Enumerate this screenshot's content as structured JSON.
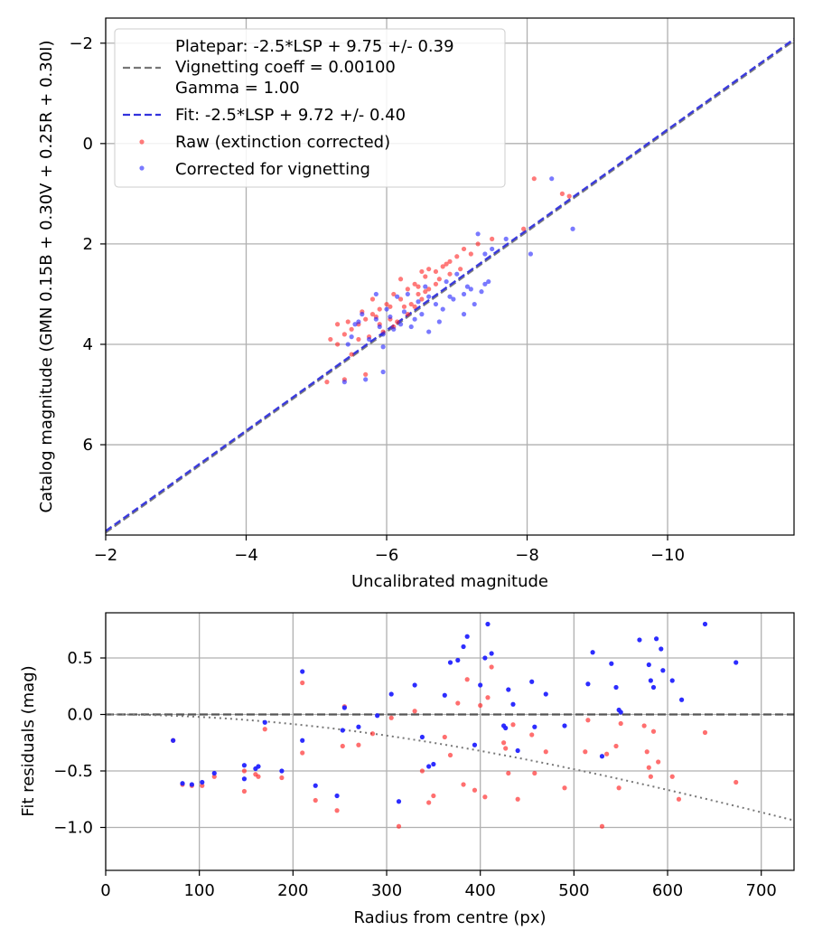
{
  "chart_data": [
    {
      "type": "scatter",
      "xlabel": "Uncalibrated magnitude",
      "ylabel": "Catalog magnitude (GMN 0.15B + 0.30V + 0.25R + 0.30I)",
      "xlim": [
        -2,
        -11.8
      ],
      "ylim": [
        7.8,
        -2.5
      ],
      "x_inverted": true,
      "y_inverted": true,
      "grid": true,
      "xticks": [
        -2,
        -4,
        -6,
        -8,
        -10
      ],
      "xtick_labels": [
        "−2",
        "−4",
        "−6",
        "−8",
        "−10"
      ],
      "yticks": [
        -2,
        0,
        2,
        4,
        6
      ],
      "ytick_labels": [
        "−2",
        "0",
        "2",
        "4",
        "6"
      ],
      "legend_position": "top-left",
      "legend": [
        {
          "label": "Platepar: -2.5*LSP + 9.75 +/- 0.39",
          "style": "none"
        },
        {
          "label": "Vignetting coeff = 0.00100",
          "style": "dashed",
          "color": "#777777"
        },
        {
          "label": "Gamma = 1.00",
          "style": "none"
        },
        {
          "label": "Fit: -2.5*LSP + 9.72 +/- 0.40",
          "style": "dashed",
          "color": "#3333dd"
        },
        {
          "label": "Raw (extinction corrected)",
          "style": "marker",
          "color": "#ff2222"
        },
        {
          "label": "Corrected for vignetting",
          "style": "marker",
          "color": "#2222ff"
        }
      ],
      "lines": [
        {
          "name": "Platepar",
          "slope": 1.0,
          "offset": 9.75,
          "color": "#777777",
          "style": "dashed"
        },
        {
          "name": "Fit",
          "slope": 1.0,
          "offset": 9.72,
          "color": "#3333dd",
          "style": "dashed"
        }
      ],
      "series": [
        {
          "name": "Raw (extinction corrected)",
          "color": "#ff2222",
          "points": [
            [
              -8.1,
              0.7
            ],
            [
              -8.5,
              1.0
            ],
            [
              -8.6,
              1.05
            ],
            [
              -7.95,
              1.7
            ],
            [
              -7.5,
              1.9
            ],
            [
              -7.2,
              2.2
            ],
            [
              -7.0,
              2.25
            ],
            [
              -7.1,
              2.1
            ],
            [
              -6.85,
              2.4
            ],
            [
              -6.9,
              2.6
            ],
            [
              -6.7,
              2.8
            ],
            [
              -6.6,
              2.5
            ],
            [
              -6.5,
              2.55
            ],
            [
              -6.4,
              2.8
            ],
            [
              -6.3,
              2.9
            ],
            [
              -6.2,
              2.7
            ],
            [
              -6.1,
              3.0
            ],
            [
              -6.2,
              3.1
            ],
            [
              -6.0,
              3.2
            ],
            [
              -5.9,
              3.3
            ],
            [
              -5.8,
              3.4
            ],
            [
              -5.7,
              3.5
            ],
            [
              -5.6,
              3.6
            ],
            [
              -5.5,
              3.7
            ],
            [
              -5.4,
              3.8
            ],
            [
              -5.3,
              3.6
            ],
            [
              -5.2,
              3.9
            ],
            [
              -5.3,
              4.0
            ],
            [
              -6.05,
              3.5
            ],
            [
              -6.3,
              3.4
            ],
            [
              -6.5,
              3.1
            ],
            [
              -6.45,
              3.0
            ],
            [
              -5.9,
              3.6
            ],
            [
              -5.75,
              3.85
            ],
            [
              -5.5,
              4.2
            ],
            [
              -5.4,
              4.7
            ],
            [
              -5.7,
              4.6
            ],
            [
              -5.15,
              4.75
            ],
            [
              -6.35,
              3.2
            ],
            [
              -6.6,
              2.9
            ],
            [
              -6.75,
              2.7
            ],
            [
              -6.55,
              2.65
            ],
            [
              -5.95,
              3.75
            ],
            [
              -6.15,
              3.55
            ],
            [
              -5.85,
              3.45
            ],
            [
              -5.65,
              3.35
            ],
            [
              -6.25,
              3.25
            ],
            [
              -5.45,
              3.55
            ],
            [
              -6.05,
              3.25
            ],
            [
              -6.7,
              2.55
            ],
            [
              -7.3,
              2.0
            ],
            [
              -7.05,
              2.5
            ],
            [
              -6.45,
              2.85
            ],
            [
              -6.8,
              2.45
            ],
            [
              -6.4,
              3.25
            ],
            [
              -5.6,
              3.9
            ],
            [
              -6.1,
              3.65
            ],
            [
              -5.8,
              3.1
            ],
            [
              -6.55,
              2.95
            ],
            [
              -6.9,
              2.35
            ]
          ]
        },
        {
          "name": "Corrected for vignetting",
          "color": "#2222ff",
          "points": [
            [
              -8.35,
              0.7
            ],
            [
              -8.65,
              1.7
            ],
            [
              -8.05,
              2.2
            ],
            [
              -7.7,
              1.9
            ],
            [
              -7.3,
              1.8
            ],
            [
              -7.5,
              2.1
            ],
            [
              -7.4,
              2.2
            ],
            [
              -7.45,
              2.75
            ],
            [
              -7.4,
              2.8
            ],
            [
              -7.2,
              2.9
            ],
            [
              -7.1,
              3.0
            ],
            [
              -7.0,
              2.6
            ],
            [
              -6.95,
              3.1
            ],
            [
              -6.8,
              3.3
            ],
            [
              -6.7,
              3.2
            ],
            [
              -6.6,
              3.05
            ],
            [
              -6.5,
              3.4
            ],
            [
              -6.4,
              3.5
            ],
            [
              -6.3,
              3.0
            ],
            [
              -6.2,
              3.6
            ],
            [
              -6.1,
              3.7
            ],
            [
              -6.0,
              3.3
            ],
            [
              -5.95,
              3.8
            ],
            [
              -5.85,
              3.5
            ],
            [
              -5.75,
              3.9
            ],
            [
              -5.65,
              3.4
            ],
            [
              -5.55,
              3.6
            ],
            [
              -5.45,
              4.0
            ],
            [
              -5.4,
              4.75
            ],
            [
              -5.7,
              4.7
            ],
            [
              -5.95,
              4.55
            ],
            [
              -6.6,
              3.75
            ],
            [
              -6.35,
              3.65
            ],
            [
              -6.15,
              3.05
            ],
            [
              -6.55,
              2.85
            ],
            [
              -6.85,
              2.75
            ],
            [
              -7.1,
              3.4
            ],
            [
              -7.25,
              3.2
            ],
            [
              -5.85,
              3.0
            ],
            [
              -6.05,
              3.45
            ],
            [
              -5.5,
              3.85
            ],
            [
              -5.9,
              3.65
            ],
            [
              -6.25,
              3.35
            ],
            [
              -6.75,
              3.55
            ],
            [
              -7.35,
              2.95
            ],
            [
              -6.45,
              3.15
            ],
            [
              -5.95,
              4.05
            ],
            [
              -5.6,
              3.55
            ],
            [
              -6.9,
              3.05
            ],
            [
              -7.15,
              2.85
            ]
          ]
        }
      ]
    },
    {
      "type": "scatter",
      "xlabel": "Radius from centre (px)",
      "ylabel": "Fit residuals (mag)",
      "xlim": [
        0,
        735
      ],
      "ylim": [
        -1.38,
        0.9
      ],
      "grid": true,
      "xticks": [
        0,
        100,
        200,
        300,
        400,
        500,
        600,
        700
      ],
      "xtick_labels": [
        "0",
        "100",
        "200",
        "300",
        "400",
        "500",
        "600",
        "700"
      ],
      "yticks": [
        -1.0,
        -0.5,
        0.0,
        0.5
      ],
      "ytick_labels": [
        "−1.0",
        "−0.5",
        "0.0",
        "0.5"
      ],
      "lines": [
        {
          "name": "zero",
          "y": 0.0,
          "color": "#555555",
          "style": "dashed"
        },
        {
          "name": "vignetting model",
          "coeff": 0.001,
          "gamma": 1.0,
          "color": "#777777",
          "style": "dotted"
        }
      ],
      "series": [
        {
          "name": "Raw (extinction corrected)",
          "color": "#ff2222",
          "points": [
            [
              72,
              -0.23
            ],
            [
              82,
              -0.62
            ],
            [
              92,
              -0.63
            ],
            [
              103,
              -0.63
            ],
            [
              116,
              -0.55
            ],
            [
              148,
              -0.5
            ],
            [
              148,
              -0.68
            ],
            [
              160,
              -0.53
            ],
            [
              163,
              -0.55
            ],
            [
              170,
              -0.13
            ],
            [
              188,
              -0.56
            ],
            [
              210,
              -0.34
            ],
            [
              210,
              0.28
            ],
            [
              224,
              -0.76
            ],
            [
              247,
              -0.85
            ],
            [
              253,
              -0.28
            ],
            [
              255,
              0.07
            ],
            [
              270,
              -0.27
            ],
            [
              285,
              -0.17
            ],
            [
              305,
              -0.03
            ],
            [
              313,
              -0.99
            ],
            [
              330,
              0.03
            ],
            [
              338,
              -0.5
            ],
            [
              345,
              -0.78
            ],
            [
              350,
              -0.72
            ],
            [
              362,
              -0.2
            ],
            [
              368,
              -0.36
            ],
            [
              376,
              0.1
            ],
            [
              382,
              -0.62
            ],
            [
              386,
              0.31
            ],
            [
              394,
              -0.67
            ],
            [
              400,
              0.08
            ],
            [
              405,
              -0.73
            ],
            [
              408,
              0.15
            ],
            [
              412,
              0.42
            ],
            [
              425,
              -0.25
            ],
            [
              427,
              -0.3
            ],
            [
              430,
              -0.52
            ],
            [
              435,
              -0.09
            ],
            [
              440,
              -0.75
            ],
            [
              455,
              -0.18
            ],
            [
              458,
              -0.52
            ],
            [
              470,
              -0.33
            ],
            [
              490,
              -0.65
            ],
            [
              512,
              -0.33
            ],
            [
              515,
              -0.05
            ],
            [
              530,
              -0.99
            ],
            [
              535,
              -0.35
            ],
            [
              545,
              -0.28
            ],
            [
              548,
              -0.65
            ],
            [
              550,
              -0.08
            ],
            [
              575,
              -0.1
            ],
            [
              578,
              -0.33
            ],
            [
              580,
              -0.47
            ],
            [
              582,
              -0.55
            ],
            [
              585,
              -0.15
            ],
            [
              590,
              -0.42
            ],
            [
              605,
              -0.55
            ],
            [
              612,
              -0.75
            ],
            [
              640,
              -0.16
            ],
            [
              673,
              -0.6
            ]
          ]
        },
        {
          "name": "Corrected for vignetting",
          "color": "#2222ff",
          "points": [
            [
              72,
              -0.23
            ],
            [
              82,
              -0.61
            ],
            [
              92,
              -0.62
            ],
            [
              103,
              -0.6
            ],
            [
              116,
              -0.52
            ],
            [
              148,
              -0.45
            ],
            [
              148,
              -0.57
            ],
            [
              160,
              -0.48
            ],
            [
              163,
              -0.46
            ],
            [
              170,
              -0.07
            ],
            [
              188,
              -0.5
            ],
            [
              210,
              -0.23
            ],
            [
              210,
              0.38
            ],
            [
              224,
              -0.63
            ],
            [
              247,
              -0.72
            ],
            [
              253,
              -0.14
            ],
            [
              255,
              0.06
            ],
            [
              270,
              -0.11
            ],
            [
              290,
              -0.01
            ],
            [
              305,
              0.18
            ],
            [
              313,
              -0.77
            ],
            [
              330,
              0.26
            ],
            [
              338,
              -0.2
            ],
            [
              345,
              -0.46
            ],
            [
              350,
              -0.44
            ],
            [
              362,
              0.17
            ],
            [
              368,
              0.46
            ],
            [
              376,
              0.48
            ],
            [
              382,
              0.6
            ],
            [
              386,
              0.69
            ],
            [
              394,
              -0.27
            ],
            [
              400,
              0.26
            ],
            [
              405,
              0.5
            ],
            [
              408,
              0.8
            ],
            [
              412,
              0.54
            ],
            [
              425,
              -0.1
            ],
            [
              427,
              -0.12
            ],
            [
              430,
              0.22
            ],
            [
              435,
              0.09
            ],
            [
              440,
              -0.32
            ],
            [
              455,
              0.29
            ],
            [
              458,
              -0.11
            ],
            [
              470,
              0.18
            ],
            [
              490,
              -0.1
            ],
            [
              515,
              0.27
            ],
            [
              520,
              0.55
            ],
            [
              530,
              -0.37
            ],
            [
              540,
              0.45
            ],
            [
              545,
              0.24
            ],
            [
              548,
              0.04
            ],
            [
              550,
              0.02
            ],
            [
              570,
              0.66
            ],
            [
              580,
              0.44
            ],
            [
              582,
              0.3
            ],
            [
              585,
              0.24
            ],
            [
              588,
              0.67
            ],
            [
              593,
              0.58
            ],
            [
              595,
              0.39
            ],
            [
              605,
              0.3
            ],
            [
              615,
              0.13
            ],
            [
              640,
              0.8
            ],
            [
              673,
              0.46
            ]
          ]
        }
      ]
    }
  ]
}
